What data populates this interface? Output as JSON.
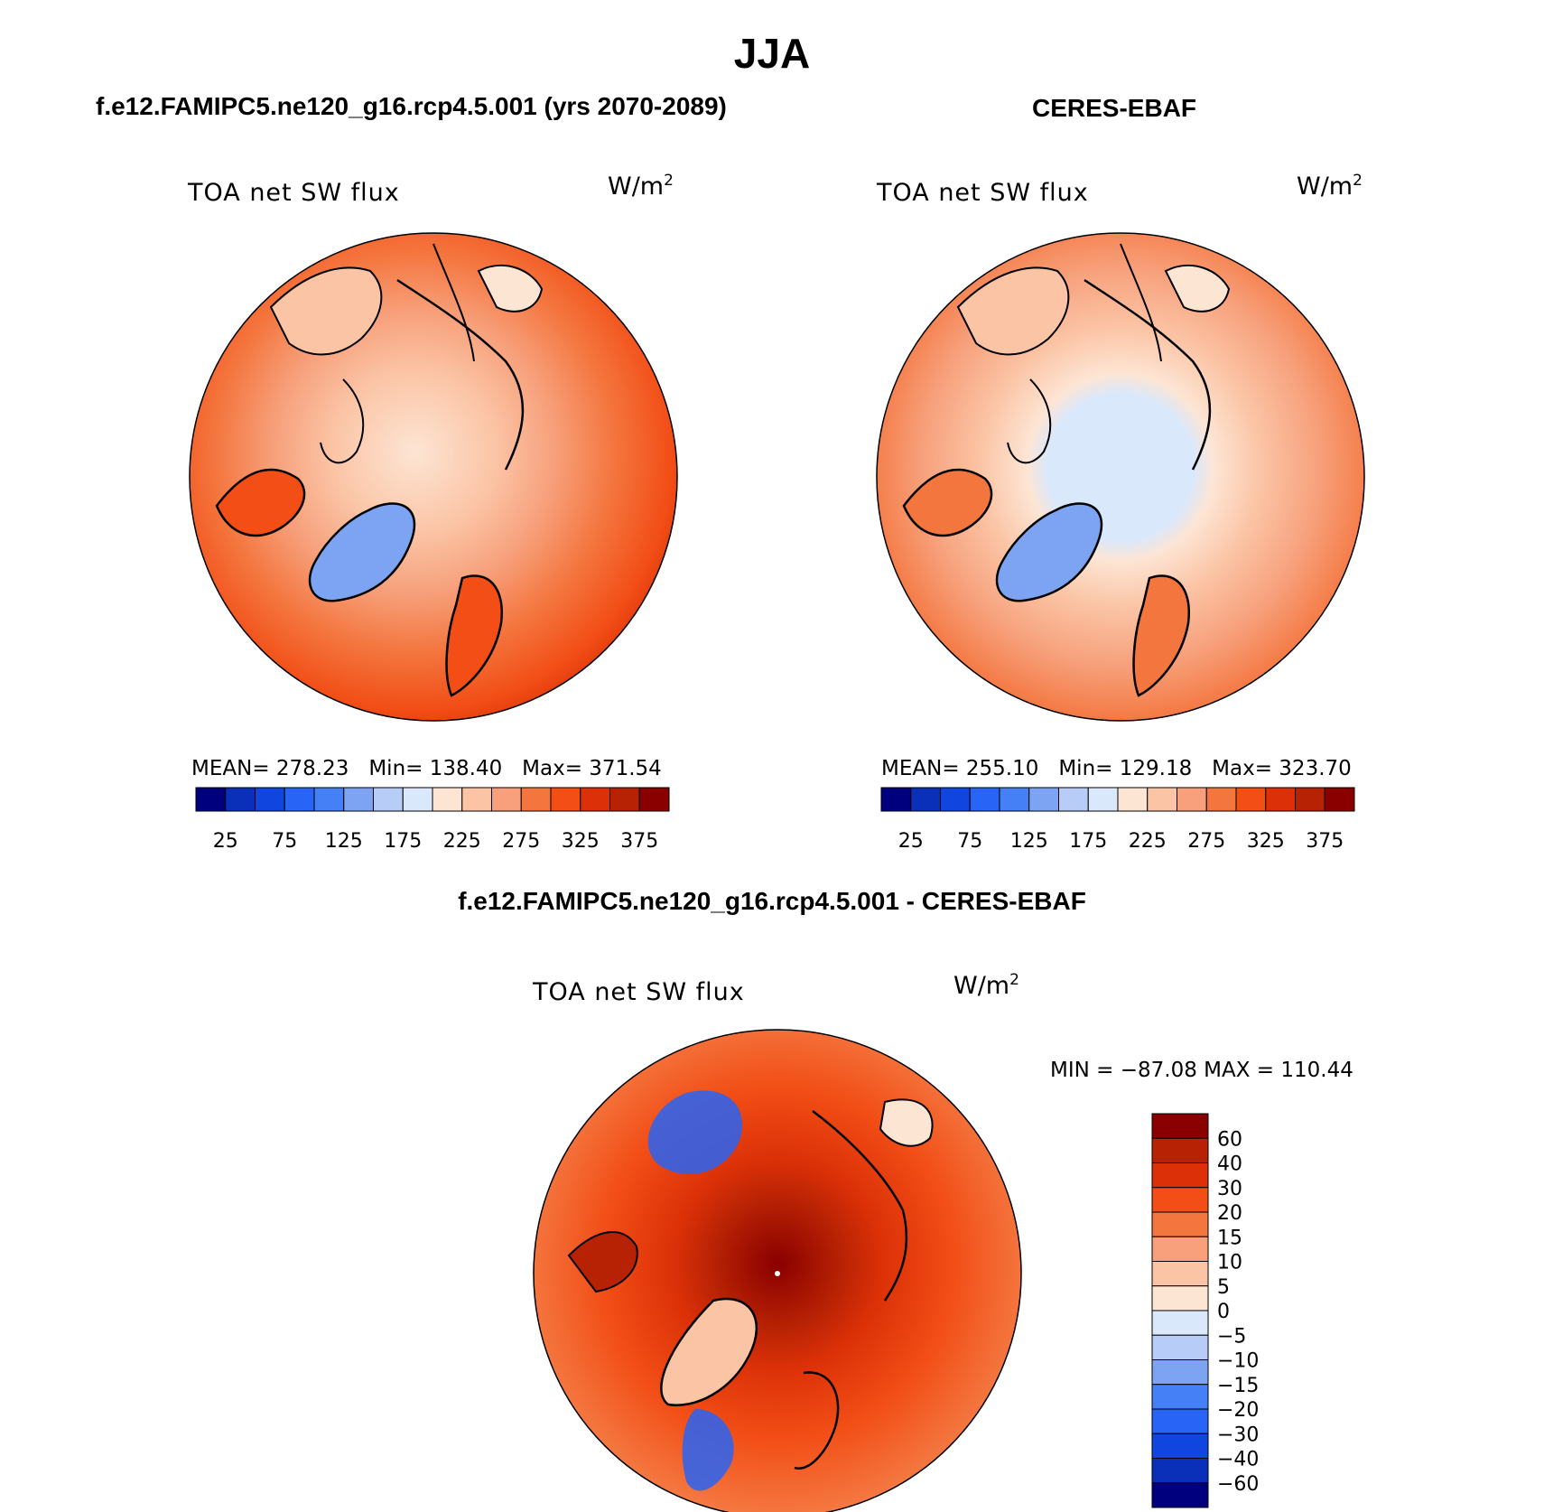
{
  "title": "JJA",
  "panels": [
    {
      "subtitle": "f.e12.FAMIPC5.ne120_g16.rcp4.5.001 (yrs 2070-2089)",
      "field": "TOA net SW flux",
      "units": "W/m",
      "units_exp": "2",
      "mean_label": "MEAN=",
      "mean": "278.23",
      "min_label": "Min=",
      "min": "138.40",
      "max_label": "Max=",
      "max": "371.54"
    },
    {
      "subtitle": "CERES-EBAF",
      "field": "TOA net SW flux",
      "units": "W/m",
      "units_exp": "2",
      "mean_label": "MEAN=",
      "mean": "255.10",
      "min_label": "Min=",
      "min": "129.18",
      "max_label": "Max=",
      "max": "323.70"
    },
    {
      "subtitle": "f.e12.FAMIPC5.ne120_g16.rcp4.5.001 - CERES-EBAF",
      "field": "TOA net SW flux",
      "units": "W/m",
      "units_exp": "2",
      "range_text": "MIN = −87.08 MAX = 110.44"
    }
  ],
  "chart_data": [
    {
      "type": "heatmap",
      "title": "TOA net SW flux",
      "projection": "north polar stereographic",
      "units": "W/m2",
      "mean": 278.23,
      "min": 138.4,
      "max": 371.54,
      "levels": [
        25,
        50,
        75,
        100,
        125,
        150,
        175,
        200,
        225,
        250,
        275,
        300,
        325,
        350,
        375
      ],
      "colorbar_ticks": [
        "25",
        "75",
        "125",
        "175",
        "225",
        "275",
        "325",
        "375"
      ]
    },
    {
      "type": "heatmap",
      "title": "TOA net SW flux",
      "projection": "north polar stereographic",
      "units": "W/m2",
      "mean": 255.1,
      "min": 129.18,
      "max": 323.7,
      "levels": [
        25,
        50,
        75,
        100,
        125,
        150,
        175,
        200,
        225,
        250,
        275,
        300,
        325,
        350,
        375
      ],
      "colorbar_ticks": [
        "25",
        "75",
        "125",
        "175",
        "225",
        "275",
        "325",
        "375"
      ]
    },
    {
      "type": "heatmap",
      "title": "TOA net SW flux",
      "projection": "north polar stereographic",
      "units": "W/m2",
      "min": -87.08,
      "max": 110.44,
      "levels": [
        -60,
        -40,
        -30,
        -20,
        -15,
        -10,
        -5,
        0,
        5,
        10,
        15,
        20,
        30,
        40,
        60
      ],
      "colorbar_ticks": [
        "60",
        "40",
        "30",
        "20",
        "15",
        "10",
        "5",
        "0",
        "−5",
        "−10",
        "−15",
        "−20",
        "−30",
        "−40",
        "−60"
      ]
    }
  ],
  "colors": {
    "palette": [
      "#00007f",
      "#0a2fb8",
      "#1145e0",
      "#2864f5",
      "#4580f7",
      "#7da4f3",
      "#b7cdf7",
      "#dae8fb",
      "#fde5d4",
      "#fbc4a5",
      "#f7a07b",
      "#f4763f",
      "#f24e16",
      "#dc3108",
      "#b82204",
      "#8a0000"
    ]
  }
}
